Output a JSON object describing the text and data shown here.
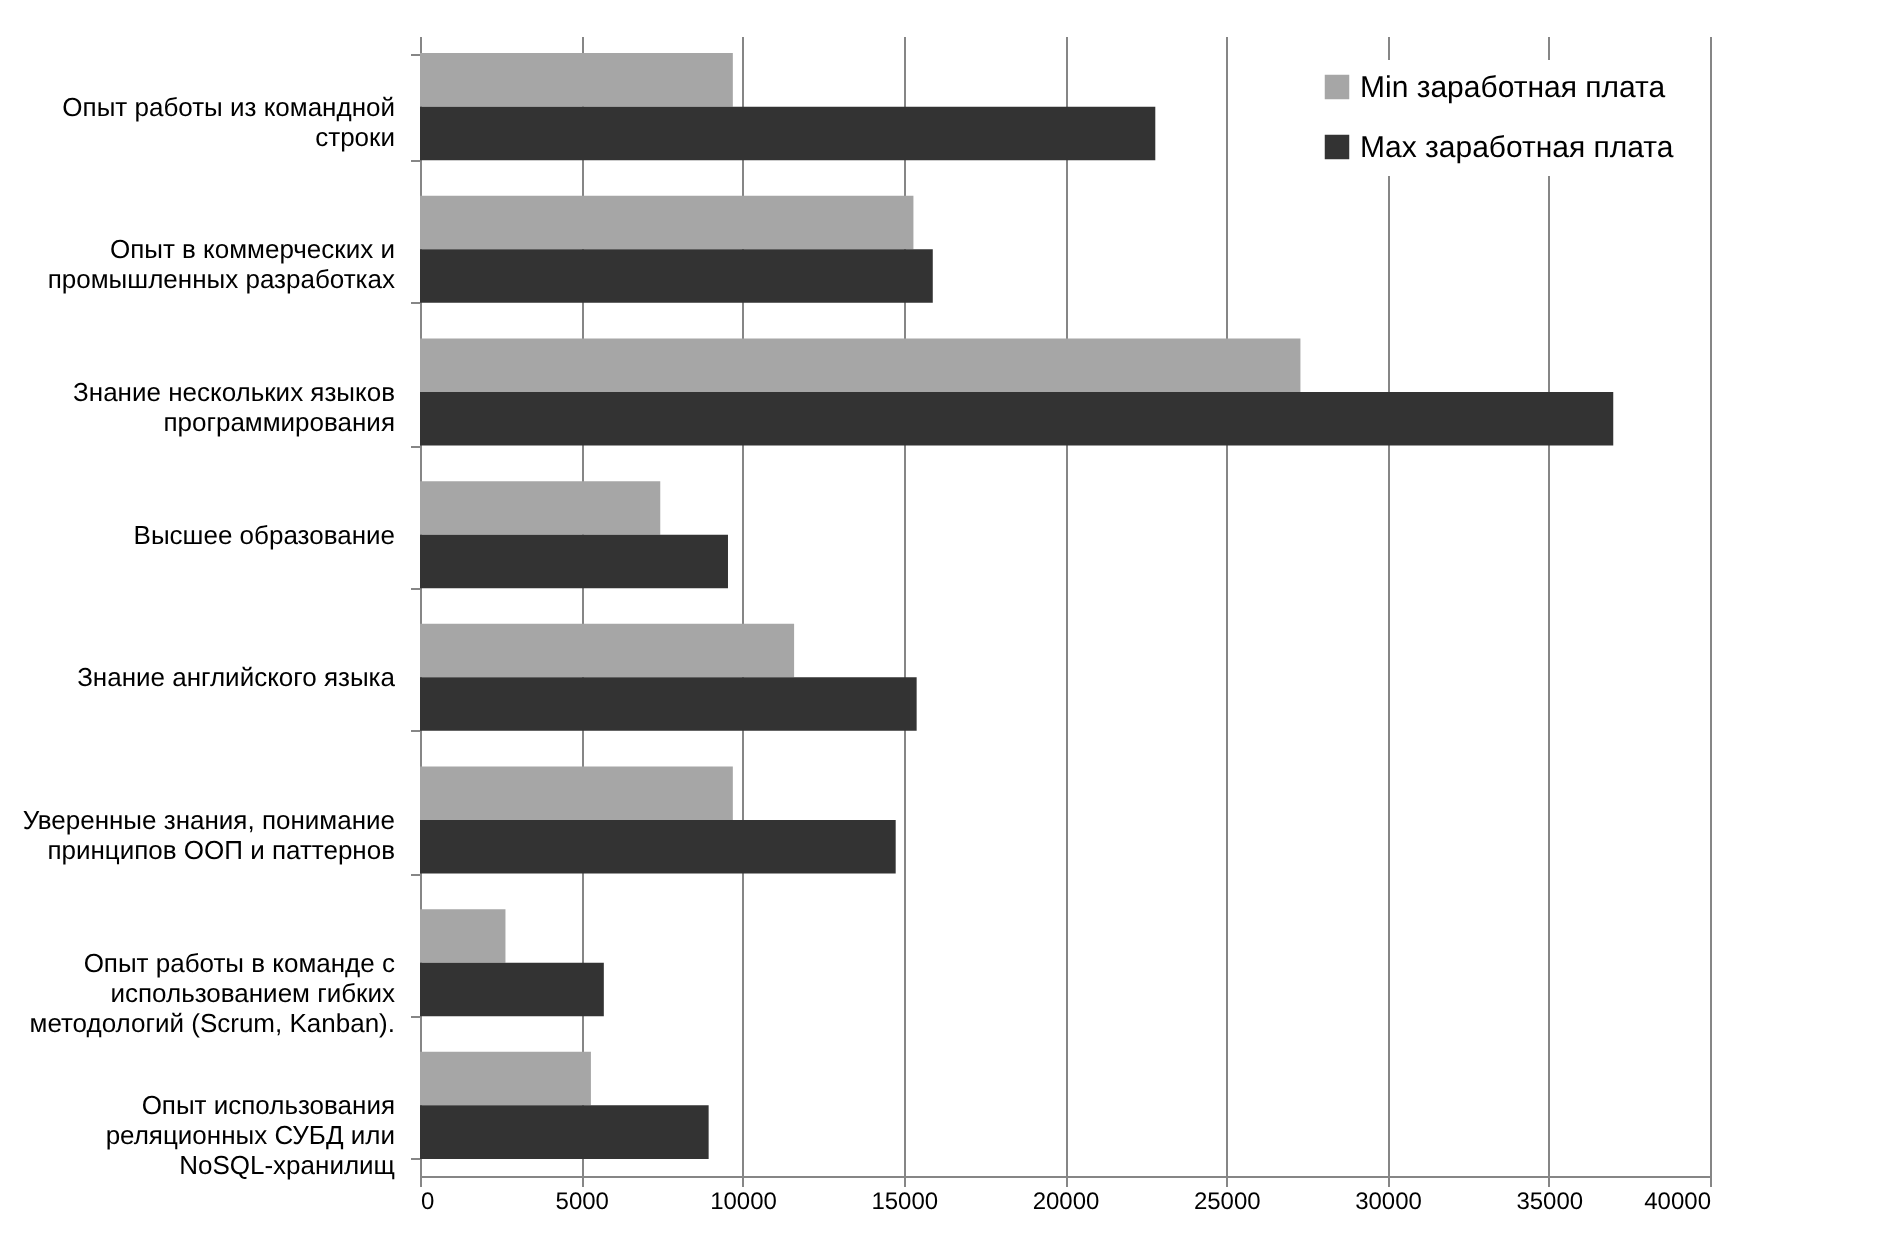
{
  "chart_data": {
    "type": "bar",
    "orientation": "horizontal",
    "categories": [
      "Опыт работы из командной строки",
      "Опыт в коммерческих и промышленных разработках",
      "Знание нескольких языков программирования",
      "Высшее образование",
      "Знание английского языка",
      "Уверенные знания, понимание принципов ООП и паттернов",
      "Опыт работы в команде с использованием гибких методологий (Scrum, Kanban).",
      "Опыт использования реляционных СУБД или NoSQL-хранилищ"
    ],
    "series": [
      {
        "name": "Min заработная плата",
        "color": "#a6a6a6",
        "values": [
          9700,
          15300,
          27300,
          7450,
          11600,
          9700,
          2650,
          5300
        ]
      },
      {
        "name": "Max заработная плата",
        "color": "#333333",
        "values": [
          22800,
          15900,
          37000,
          9550,
          15400,
          14750,
          5700,
          8950
        ]
      }
    ],
    "xlim": [
      0,
      40000
    ],
    "xticks": [
      0,
      5000,
      10000,
      15000,
      20000,
      25000,
      30000,
      35000,
      40000
    ],
    "grid": "x",
    "legend": "top right"
  }
}
